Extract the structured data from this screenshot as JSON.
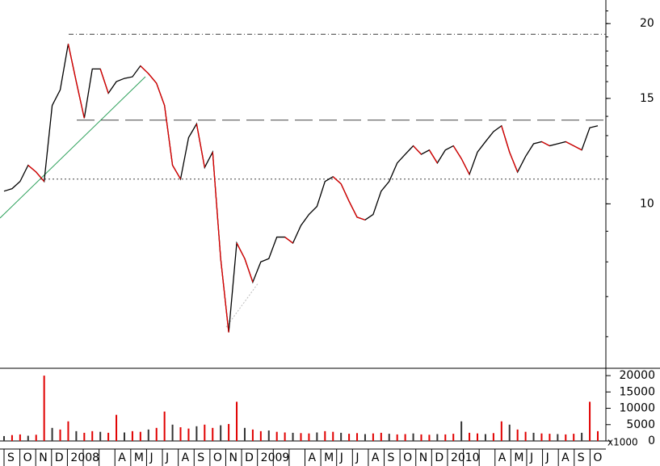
{
  "chart_data": {
    "type": "stock",
    "price": {
      "color": "#000000",
      "log": true,
      "ylim": [
        5.33,
        21.9
      ],
      "yticks": [
        10,
        15,
        20
      ],
      "values": [
        10.5,
        10.6,
        10.9,
        11.6,
        11.3,
        10.9,
        14.6,
        15.5,
        18.5,
        16.0,
        13.9,
        16.8,
        16.8,
        15.3,
        16.0,
        16.2,
        16.3,
        17.0,
        16.5,
        15.9,
        14.6,
        11.6,
        11.0,
        12.9,
        13.6,
        11.5,
        12.2,
        8.1,
        6.1,
        8.6,
        8.1,
        7.4,
        8.0,
        8.1,
        8.8,
        8.8,
        8.6,
        9.2,
        9.6,
        9.9,
        10.9,
        11.1,
        10.8,
        10.1,
        9.5,
        9.4,
        9.6,
        10.5,
        10.9,
        11.7,
        12.1,
        12.5,
        12.1,
        12.3,
        11.7,
        12.3,
        12.5,
        11.9,
        11.2,
        12.2,
        12.7,
        13.2,
        13.5,
        12.2,
        11.3,
        12.0,
        12.6,
        12.7,
        12.5,
        12.6,
        12.7,
        12.5,
        12.3,
        13.4,
        13.5
      ],
      "levels": [
        19.2,
        13.8,
        11.0
      ]
    },
    "volume": {
      "color": "#e00000",
      "ylim": [
        0,
        22000
      ],
      "yticks": [
        0,
        5000,
        10000,
        15000,
        20000
      ],
      "unit_label": "x1000",
      "values": [
        1500,
        1800,
        2000,
        1600,
        1900,
        20000,
        4000,
        3500,
        6000,
        3000,
        2500,
        3000,
        2800,
        2500,
        8000,
        2600,
        3000,
        2800,
        3500,
        4000,
        9000,
        5000,
        4200,
        3800,
        4500,
        5000,
        4000,
        4800,
        5200,
        12000,
        4000,
        3500,
        3000,
        3200,
        2800,
        2600,
        2500,
        2400,
        2300,
        2600,
        3000,
        2800,
        2500,
        2200,
        2400,
        2100,
        2300,
        2500,
        2200,
        2000,
        2100,
        2300,
        2000,
        1900,
        2100,
        2000,
        2200,
        6000,
        2500,
        2300,
        2100,
        2400,
        6000,
        5000,
        3500,
        2800,
        2500,
        2300,
        2200,
        2100,
        2000,
        2200,
        2500,
        12000,
        3000
      ]
    },
    "x_labels": [
      "S",
      "O",
      "N",
      "D",
      "2008",
      null,
      null,
      "A",
      "M",
      "J",
      "J",
      "A",
      "S",
      "O",
      "N",
      "D",
      "2009",
      null,
      null,
      "A",
      "M",
      "J",
      "J",
      "A",
      "S",
      "O",
      "N",
      "D",
      "2010",
      null,
      null,
      "A",
      "M",
      "J",
      "J",
      "A",
      "S",
      "O"
    ]
  }
}
